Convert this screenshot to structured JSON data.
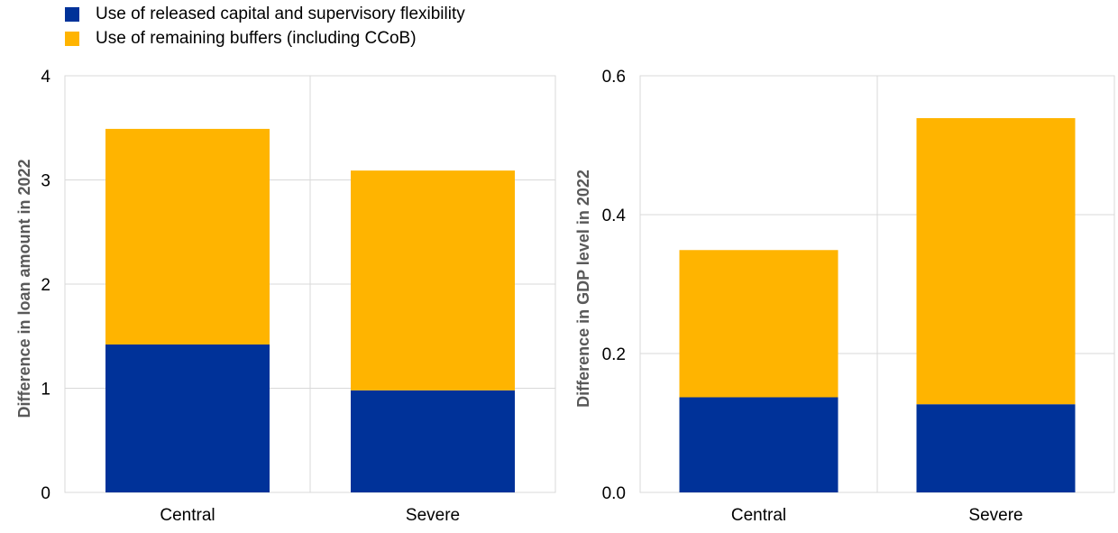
{
  "legend": {
    "items": [
      {
        "label": "Use of released capital and supervisory flexibility",
        "color": "#003299"
      },
      {
        "label": "Use of remaining buffers (including CCoB)",
        "color": "#FFB400"
      }
    ]
  },
  "chart_data": [
    {
      "type": "bar",
      "stacked": true,
      "categories": [
        "Central",
        "Severe"
      ],
      "series": [
        {
          "name": "Use of released capital and supervisory flexibility",
          "color": "#003299",
          "values": [
            1.42,
            0.98
          ]
        },
        {
          "name": "Use of remaining buffers (including CCoB)",
          "color": "#FFB400",
          "values": [
            2.07,
            2.11
          ]
        }
      ],
      "ylabel": "Difference in loan amount in 2022",
      "ylim": [
        0,
        4
      ],
      "yticks": [
        0,
        1,
        2,
        3,
        4
      ],
      "ytick_labels": [
        "0",
        "1",
        "2",
        "3",
        "4"
      ],
      "grid": true
    },
    {
      "type": "bar",
      "stacked": true,
      "categories": [
        "Central",
        "Severe"
      ],
      "series": [
        {
          "name": "Use of released capital and supervisory flexibility",
          "color": "#003299",
          "values": [
            0.137,
            0.127
          ]
        },
        {
          "name": "Use of remaining buffers (including CCoB)",
          "color": "#FFB400",
          "values": [
            0.212,
            0.412
          ]
        }
      ],
      "ylabel": "Difference in GDP level in 2022",
      "ylim": [
        0,
        0.6
      ],
      "yticks": [
        0,
        0.2,
        0.4,
        0.6
      ],
      "ytick_labels": [
        "0.0",
        "0.2",
        "0.4",
        "0.6"
      ],
      "grid": true
    }
  ]
}
